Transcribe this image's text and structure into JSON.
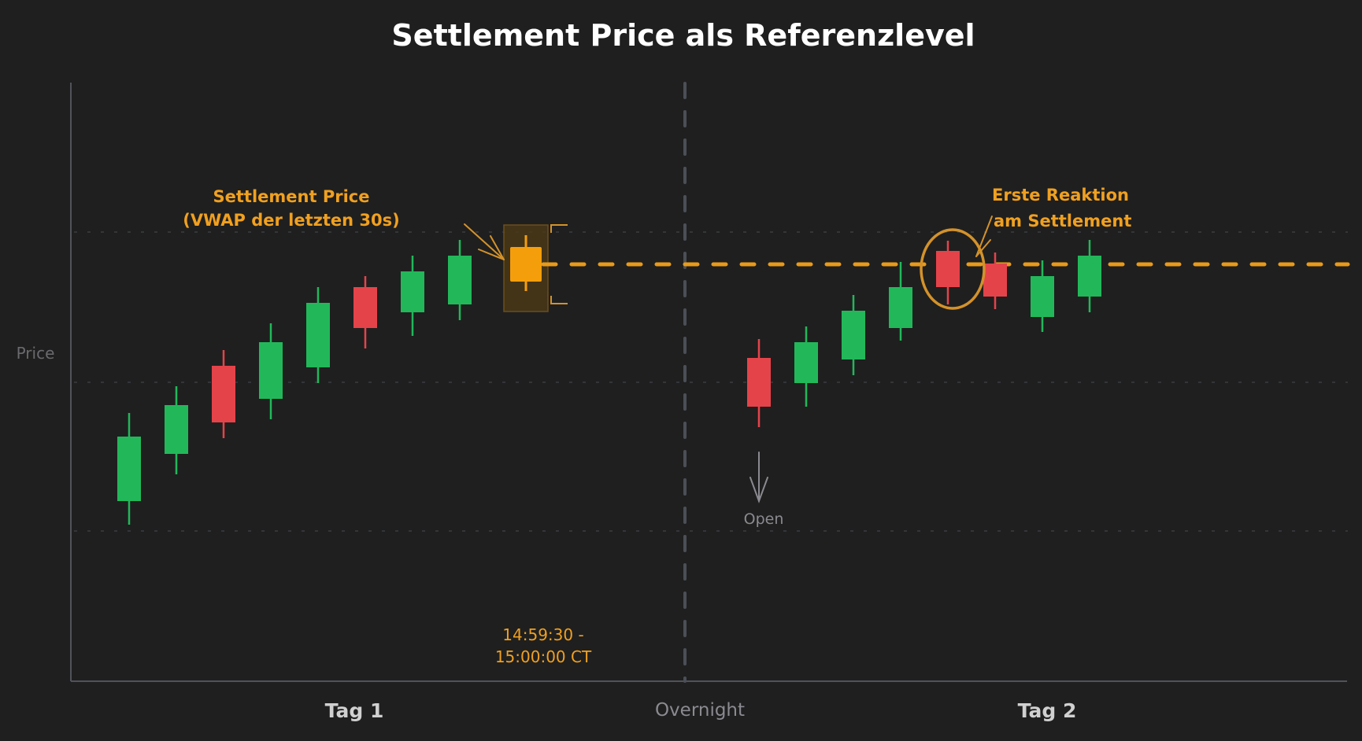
{
  "title": "Settlement Price als Referenzlevel",
  "colors": {
    "background": "#1f1f1f",
    "bull": "#22b85a",
    "bear": "#e5434a",
    "settlement": "#f59e0b",
    "settlement_line": "#e89a1a",
    "axis": "#50535a",
    "grid": "#333538",
    "divider": "#4b4f57"
  },
  "annotations": {
    "settlement_label_line1": "Settlement Price",
    "settlement_label_line2": "(VWAP der letzten 30s)",
    "reaction_label_line1": "Erste Reaktion",
    "reaction_label_line2": "am Settlement",
    "time_window_line1": "14:59:30 -",
    "time_window_line2": "15:00:00 CT",
    "open_label": "Open"
  },
  "axes": {
    "y_label": "Price",
    "x_sections": [
      "Tag 1",
      "Overnight",
      "Tag 2"
    ]
  },
  "chart_data": {
    "type": "candlestick",
    "title": "Settlement Price als Referenzlevel",
    "xlabel": "",
    "ylabel": "Price",
    "y_units": "relative (higher = higher price)",
    "grid": true,
    "sections": [
      "Tag 1",
      "Overnight",
      "Tag 2"
    ],
    "settlement_level": 336,
    "series": [
      {
        "name": "Tag 1",
        "candles": [
          {
            "x": 164,
            "dir": "up",
            "high": 525,
            "open": 637,
            "close": 555,
            "low": 667
          },
          {
            "x": 224,
            "dir": "up",
            "high": 491,
            "open": 577,
            "close": 515,
            "low": 603
          },
          {
            "x": 284,
            "dir": "down",
            "high": 445,
            "open": 465,
            "close": 537,
            "low": 557
          },
          {
            "x": 344,
            "dir": "up",
            "high": 411,
            "open": 507,
            "close": 435,
            "low": 533
          },
          {
            "x": 404,
            "dir": "up",
            "high": 365,
            "open": 467,
            "close": 385,
            "low": 487
          },
          {
            "x": 464,
            "dir": "down",
            "high": 351,
            "open": 365,
            "close": 417,
            "low": 443
          },
          {
            "x": 524,
            "dir": "up",
            "high": 325,
            "open": 397,
            "close": 345,
            "low": 427
          },
          {
            "x": 584,
            "dir": "up",
            "high": 305,
            "open": 387,
            "close": 325,
            "low": 407
          },
          {
            "x": 668,
            "dir": "settlement",
            "high": 299,
            "open": 358,
            "close": 314,
            "low": 370
          }
        ]
      },
      {
        "name": "Tag 2",
        "candles": [
          {
            "x": 964,
            "dir": "down",
            "high": 431,
            "open": 455,
            "close": 517,
            "low": 543
          },
          {
            "x": 1024,
            "dir": "up",
            "high": 415,
            "open": 487,
            "close": 435,
            "low": 517
          },
          {
            "x": 1084,
            "dir": "up",
            "high": 375,
            "open": 457,
            "close": 395,
            "low": 477
          },
          {
            "x": 1144,
            "dir": "up",
            "high": 333,
            "open": 417,
            "close": 365,
            "low": 433
          },
          {
            "x": 1204,
            "dir": "down",
            "high": 306,
            "open": 319,
            "close": 365,
            "low": 387
          },
          {
            "x": 1264,
            "dir": "down",
            "high": 321,
            "open": 335,
            "close": 377,
            "low": 393
          },
          {
            "x": 1324,
            "dir": "up",
            "high": 331,
            "open": 403,
            "close": 351,
            "low": 422
          },
          {
            "x": 1384,
            "dir": "up",
            "high": 305,
            "open": 377,
            "close": 325,
            "low": 397
          }
        ]
      }
    ],
    "annotations": [
      "Settlement Price (VWAP der letzten 30s)",
      "14:59:30 - 15:00:00 CT",
      "Open",
      "Erste Reaktion am Settlement"
    ]
  }
}
